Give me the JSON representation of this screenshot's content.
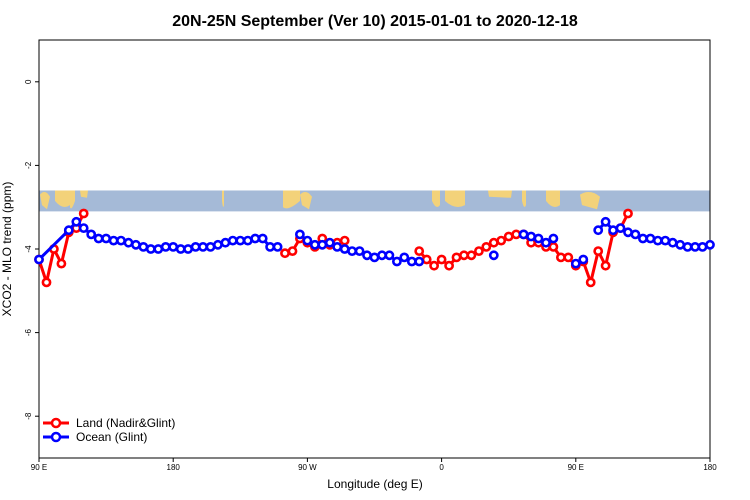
{
  "chart_data": {
    "type": "line",
    "title": "20N-25N September (Ver 10)   2015-01-01 to 2020-12-18",
    "xlabel": "Longitude (deg E)",
    "ylabel": "XCO2 - MLO trend (ppm)",
    "x_ticks": [
      {
        "value": 90,
        "label": "90 E"
      },
      {
        "value": 180,
        "label": "180"
      },
      {
        "value": 270,
        "label": "90 W"
      },
      {
        "value": 360,
        "label": "0"
      },
      {
        "value": 450,
        "label": "90 E"
      },
      {
        "value": 540,
        "label": "180"
      }
    ],
    "y_ticks": [
      {
        "value": 0,
        "label": "0"
      },
      {
        "value": -2,
        "label": "-2"
      },
      {
        "value": -4,
        "label": "-4"
      },
      {
        "value": -6,
        "label": "-6"
      },
      {
        "value": -8,
        "label": "-8"
      }
    ],
    "xlim": [
      90,
      540
    ],
    "ylim": [
      -9,
      1
    ],
    "grid": false,
    "legend_position": "bottom-left",
    "background_map": {
      "type": "world-map-strip",
      "latitude_band": "20N-25N",
      "y_range": [
        -3.1,
        -2.6
      ],
      "ocean_color": "#a5bad7",
      "land_color": "#f3d27a"
    },
    "series": [
      {
        "name": "Land (Nadir&Glint)",
        "color": "#ff0000",
        "segments": [
          [
            [
              90,
              -4.25
            ],
            [
              95,
              -4.8
            ],
            [
              100,
              -4.0
            ],
            [
              105,
              -4.35
            ],
            [
              110,
              -3.6
            ],
            [
              115,
              -3.5
            ],
            [
              120,
              -3.15
            ]
          ],
          [
            [
              255,
              -4.1
            ],
            [
              260,
              -4.05
            ],
            [
              265,
              -3.75
            ],
            [
              270,
              -3.85
            ],
            [
              275,
              -3.95
            ],
            [
              280,
              -3.75
            ],
            [
              285,
              -3.9
            ],
            [
              290,
              -3.85
            ],
            [
              295,
              -3.8
            ]
          ],
          [
            [
              345,
              -4.05
            ],
            [
              350,
              -4.25
            ],
            [
              355,
              -4.4
            ],
            [
              360,
              -4.25
            ],
            [
              365,
              -4.4
            ],
            [
              370,
              -4.2
            ],
            [
              375,
              -4.15
            ],
            [
              380,
              -4.15
            ],
            [
              385,
              -4.05
            ],
            [
              390,
              -3.95
            ],
            [
              395,
              -3.85
            ],
            [
              400,
              -3.8
            ],
            [
              405,
              -3.7
            ],
            [
              410,
              -3.65
            ],
            [
              415,
              -3.65
            ],
            [
              420,
              -3.85
            ],
            [
              425,
              -3.85
            ],
            [
              430,
              -3.95
            ],
            [
              435,
              -3.95
            ],
            [
              440,
              -4.2
            ],
            [
              445,
              -4.2
            ],
            [
              450,
              -4.4
            ],
            [
              455,
              -4.3
            ],
            [
              460,
              -4.8
            ],
            [
              465,
              -4.05
            ],
            [
              470,
              -4.4
            ],
            [
              475,
              -3.6
            ],
            [
              480,
              -3.5
            ],
            [
              485,
              -3.15
            ]
          ]
        ]
      },
      {
        "name": "Ocean (Glint)",
        "color": "#0000ff",
        "segments": [
          [
            [
              90,
              -4.25
            ],
            [
              110,
              -3.55
            ],
            [
              115,
              -3.35
            ],
            [
              120,
              -3.5
            ],
            [
              125,
              -3.65
            ],
            [
              130,
              -3.75
            ],
            [
              135,
              -3.75
            ],
            [
              140,
              -3.8
            ],
            [
              145,
              -3.8
            ],
            [
              150,
              -3.85
            ],
            [
              155,
              -3.9
            ],
            [
              160,
              -3.95
            ],
            [
              165,
              -4.0
            ],
            [
              170,
              -4.0
            ],
            [
              175,
              -3.95
            ],
            [
              180,
              -3.95
            ],
            [
              185,
              -4.0
            ],
            [
              190,
              -4.0
            ],
            [
              195,
              -3.95
            ],
            [
              200,
              -3.95
            ],
            [
              205,
              -3.95
            ],
            [
              210,
              -3.9
            ],
            [
              215,
              -3.85
            ],
            [
              220,
              -3.8
            ],
            [
              225,
              -3.8
            ],
            [
              230,
              -3.8
            ],
            [
              235,
              -3.75
            ],
            [
              240,
              -3.75
            ],
            [
              245,
              -3.95
            ],
            [
              250,
              -3.95
            ]
          ],
          [
            [
              265,
              -3.65
            ],
            [
              270,
              -3.8
            ],
            [
              275,
              -3.9
            ],
            [
              280,
              -3.9
            ],
            [
              285,
              -3.85
            ],
            [
              290,
              -3.95
            ],
            [
              295,
              -4.0
            ],
            [
              300,
              -4.05
            ],
            [
              305,
              -4.05
            ],
            [
              310,
              -4.15
            ],
            [
              315,
              -4.2
            ],
            [
              320,
              -4.15
            ],
            [
              325,
              -4.15
            ],
            [
              330,
              -4.3
            ],
            [
              335,
              -4.2
            ],
            [
              340,
              -4.3
            ],
            [
              345,
              -4.3
            ]
          ],
          [
            [
              395,
              -4.15
            ]
          ],
          [
            [
              415,
              -3.65
            ],
            [
              420,
              -3.7
            ],
            [
              425,
              -3.75
            ],
            [
              430,
              -3.85
            ],
            [
              435,
              -3.75
            ]
          ],
          [
            [
              450,
              -4.35
            ],
            [
              455,
              -4.25
            ]
          ],
          [
            [
              465,
              -3.55
            ],
            [
              470,
              -3.35
            ],
            [
              475,
              -3.55
            ],
            [
              480,
              -3.5
            ],
            [
              485,
              -3.6
            ],
            [
              490,
              -3.65
            ],
            [
              495,
              -3.75
            ],
            [
              500,
              -3.75
            ],
            [
              505,
              -3.8
            ],
            [
              510,
              -3.8
            ],
            [
              515,
              -3.85
            ],
            [
              520,
              -3.9
            ],
            [
              525,
              -3.95
            ],
            [
              530,
              -3.95
            ],
            [
              535,
              -3.95
            ],
            [
              540,
              -3.9
            ]
          ]
        ]
      }
    ]
  }
}
